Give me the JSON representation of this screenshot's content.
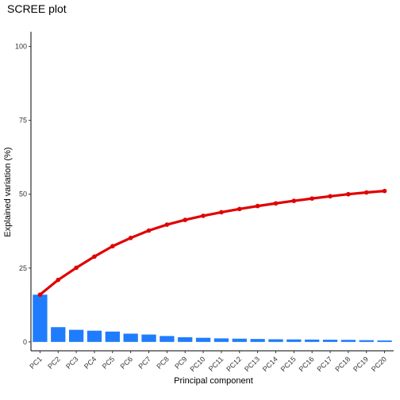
{
  "chart_data": {
    "type": "bar",
    "title": "SCREE plot",
    "xlabel": "Principal component",
    "ylabel": "Explained variation (%)",
    "categories": [
      "PC1",
      "PC2",
      "PC3",
      "PC4",
      "PC5",
      "PC6",
      "PC7",
      "PC8",
      "PC9",
      "PC10",
      "PC11",
      "PC12",
      "PC13",
      "PC14",
      "PC15",
      "PC16",
      "PC17",
      "PC18",
      "PC19",
      "PC20"
    ],
    "series": [
      {
        "kind": "bar",
        "values": [
          16.0,
          5.0,
          4.1,
          3.8,
          3.5,
          2.8,
          2.5,
          2.0,
          1.6,
          1.4,
          1.2,
          1.1,
          1.0,
          0.9,
          0.85,
          0.8,
          0.75,
          0.7,
          0.6,
          0.5
        ]
      },
      {
        "kind": "line",
        "values": [
          16.0,
          21.0,
          25.1,
          28.9,
          32.4,
          35.2,
          37.7,
          39.7,
          41.3,
          42.7,
          43.9,
          45.0,
          46.0,
          46.9,
          47.75,
          48.55,
          49.3,
          50.0,
          50.6,
          51.1
        ]
      }
    ],
    "ylim": [
      -3,
      105
    ],
    "yticks": [
      0,
      25,
      50,
      75,
      100
    ],
    "grid": false,
    "colors": {
      "bar": "#1f7cfc",
      "line": "#e00000",
      "axis": "#000000"
    }
  }
}
